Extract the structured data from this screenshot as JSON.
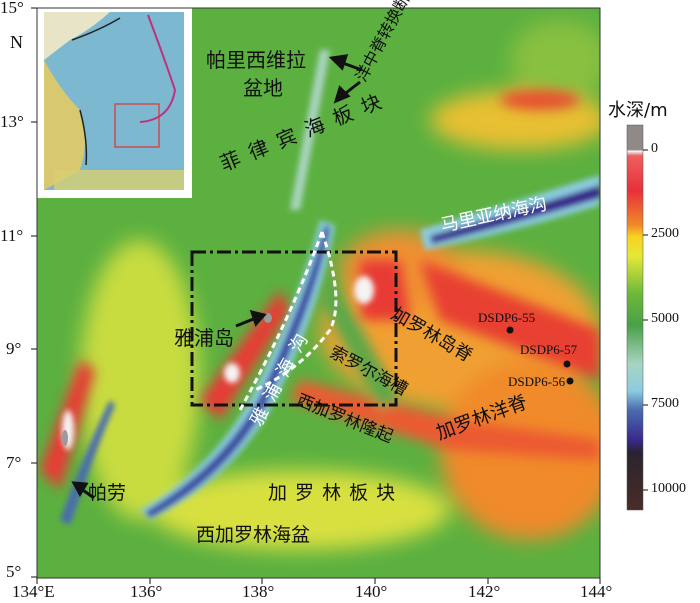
{
  "axes": {
    "x_ticks": [
      "134°E",
      "136°",
      "138°",
      "140°",
      "142°",
      "144°"
    ],
    "y_ticks": [
      "15°",
      "13°",
      "11°",
      "9°",
      "7°",
      "5°"
    ],
    "north_label": "N"
  },
  "labels": {
    "parece_vela": [
      "帕里西维拉",
      "盆地"
    ],
    "transform_fault": "洋中脊转换断层",
    "philippine_plate": "菲 律 宾 海 板 块",
    "mariana_trench": "马里亚纳海沟",
    "yap_island": "雅浦岛",
    "yap_trench": "雅 浦 海 沟",
    "sorol_trough": "索罗尔海槽",
    "caroline_island_ridge": "加罗林岛脊",
    "west_caroline_rise": "西加罗林隆起",
    "caroline_ocean_ridge": "加罗林洋脊",
    "caroline_plate": "加 罗 林 板 块",
    "west_caroline_basin": "西加罗林海盆",
    "palau": "帕劳",
    "sites": [
      "DSDP6-55",
      "DSDP6-57",
      "DSDP6-56"
    ]
  },
  "colorbar": {
    "title": "水深/m",
    "ticks": [
      "0",
      "2500",
      "5000",
      "7500",
      "10000"
    ],
    "stops": [
      "#8f8a88",
      "#f4f4f4",
      "#e8303a",
      "#f08a2a",
      "#f8d21e",
      "#e4e838",
      "#6cb83a",
      "#4aa048",
      "#a8d4c0",
      "#8ccce0",
      "#4a6cb0",
      "#38288a",
      "#2a2430",
      "#4a2c26"
    ]
  },
  "inset": {
    "highlight_color": "#e03030"
  }
}
